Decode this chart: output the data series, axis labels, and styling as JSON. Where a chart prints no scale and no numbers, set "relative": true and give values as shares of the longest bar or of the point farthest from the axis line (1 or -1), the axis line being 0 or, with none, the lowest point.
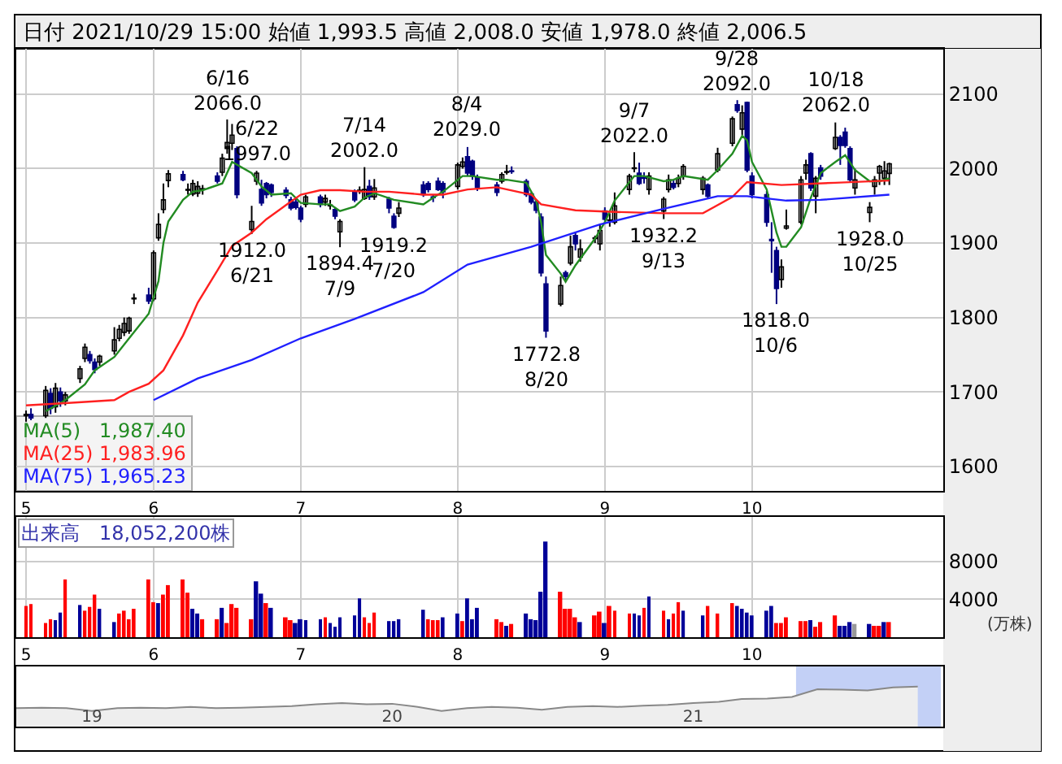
{
  "chart_data": [
    {
      "type": "candlestick",
      "title": "日付 2021/10/29 15:00 始値 1,993.5 高値 2,008.0 安値 1,978.0 終値 2,006.5",
      "x": [
        "2021-05-06",
        "2021-05-07",
        "2021-05-10",
        "2021-05-11",
        "2021-05-12",
        "2021-05-13",
        "2021-05-14",
        "2021-05-17",
        "2021-05-18",
        "2021-05-19",
        "2021-05-20",
        "2021-05-21",
        "2021-05-24",
        "2021-05-25",
        "2021-05-26",
        "2021-05-27",
        "2021-05-28",
        "2021-05-31",
        "2021-06-01",
        "2021-06-02",
        "2021-06-03",
        "2021-06-04",
        "2021-06-07",
        "2021-06-08",
        "2021-06-09",
        "2021-06-10",
        "2021-06-11",
        "2021-06-14",
        "2021-06-15",
        "2021-06-16",
        "2021-06-17",
        "2021-06-18",
        "2021-06-21",
        "2021-06-22",
        "2021-06-23",
        "2021-06-24",
        "2021-06-25",
        "2021-06-28",
        "2021-06-29",
        "2021-06-30",
        "2021-07-01",
        "2021-07-02",
        "2021-07-05",
        "2021-07-06",
        "2021-07-07",
        "2021-07-08",
        "2021-07-09",
        "2021-07-12",
        "2021-07-13",
        "2021-07-14",
        "2021-07-15",
        "2021-07-16",
        "2021-07-19",
        "2021-07-20",
        "2021-07-21",
        "2021-07-26",
        "2021-07-27",
        "2021-07-28",
        "2021-07-29",
        "2021-07-30",
        "2021-08-02",
        "2021-08-03",
        "2021-08-04",
        "2021-08-05",
        "2021-08-06",
        "2021-08-10",
        "2021-08-11",
        "2021-08-12",
        "2021-08-13",
        "2021-08-16",
        "2021-08-17",
        "2021-08-18",
        "2021-08-19",
        "2021-08-20",
        "2021-08-23",
        "2021-08-24",
        "2021-08-25",
        "2021-08-26",
        "2021-08-27",
        "2021-08-30",
        "2021-08-31",
        "2021-09-01",
        "2021-09-02",
        "2021-09-03",
        "2021-09-06",
        "2021-09-07",
        "2021-09-08",
        "2021-09-09",
        "2021-09-10",
        "2021-09-13",
        "2021-09-14",
        "2021-09-15",
        "2021-09-16",
        "2021-09-17",
        "2021-09-21",
        "2021-09-22",
        "2021-09-24",
        "2021-09-27",
        "2021-09-28",
        "2021-09-29",
        "2021-09-30",
        "2021-10-01",
        "2021-10-04",
        "2021-10-05",
        "2021-10-06",
        "2021-10-07",
        "2021-10-08",
        "2021-10-11",
        "2021-10-12",
        "2021-10-13",
        "2021-10-14",
        "2021-10-15",
        "2021-10-18",
        "2021-10-19",
        "2021-10-20",
        "2021-10-21",
        "2021-10-22",
        "2021-10-25",
        "2021-10-26",
        "2021-10-27",
        "2021-10-28",
        "2021-10-29"
      ],
      "ohlc": [
        [
          1668,
          1675,
          1660,
          1670
        ],
        [
          1670,
          1678,
          1662,
          1665
        ],
        [
          1668,
          1708,
          1665,
          1702
        ],
        [
          1698,
          1705,
          1670,
          1678
        ],
        [
          1680,
          1712,
          1672,
          1705
        ],
        [
          1700,
          1706,
          1680,
          1688
        ],
        [
          1688,
          1700,
          1682,
          1696
        ],
        [
          1718,
          1735,
          1712,
          1731
        ],
        [
          1745,
          1765,
          1740,
          1760
        ],
        [
          1750,
          1755,
          1738,
          1742
        ],
        [
          1740,
          1745,
          1725,
          1730
        ],
        [
          1740,
          1750,
          1735,
          1748
        ],
        [
          1755,
          1787,
          1750,
          1770
        ],
        [
          1772,
          1790,
          1768,
          1784
        ],
        [
          1780,
          1800,
          1775,
          1792
        ],
        [
          1782,
          1801,
          1778,
          1799
        ],
        [
          1825,
          1832,
          1818,
          1826
        ],
        [
          1830,
          1840,
          1818,
          1822
        ],
        [
          1825,
          1890,
          1822,
          1887
        ],
        [
          1907,
          1940,
          1903,
          1925
        ],
        [
          1945,
          1980,
          1940,
          1958
        ],
        [
          1984,
          1998,
          1975,
          1993
        ],
        [
          1992,
          1997,
          1983,
          1985
        ],
        [
          1971,
          1980,
          1965,
          1972
        ],
        [
          1966,
          1985,
          1963,
          1980
        ],
        [
          1967,
          1983,
          1962,
          1976
        ],
        [
          1972,
          1978,
          1965,
          1973
        ],
        [
          1990,
          1995,
          1980,
          1983
        ],
        [
          1995,
          2020,
          1990,
          2014
        ],
        [
          2027,
          2066,
          2020,
          2035
        ],
        [
          2034,
          2060,
          2025,
          2045
        ],
        [
          2027,
          2030,
          1960,
          1965
        ],
        [
          1918,
          1950,
          1912,
          1929
        ],
        [
          1983,
          1997,
          1978,
          1994
        ],
        [
          1972,
          1985,
          1950,
          1954
        ],
        [
          1980,
          1982,
          1960,
          1965
        ],
        [
          1978,
          1980,
          1962,
          1968
        ],
        [
          1971,
          1975,
          1960,
          1964
        ],
        [
          1958,
          1962,
          1944,
          1947
        ],
        [
          1955,
          1960,
          1945,
          1948
        ],
        [
          1947,
          1950,
          1928,
          1932
        ],
        [
          1952,
          1965,
          1948,
          1962
        ],
        [
          1962,
          1965,
          1948,
          1952
        ],
        [
          1955,
          1965,
          1950,
          1960
        ],
        [
          1950,
          1958,
          1945,
          1951
        ],
        [
          1945,
          1948,
          1932,
          1936
        ],
        [
          1915,
          1932,
          1894.4,
          1929
        ],
        [
          1970,
          1972,
          1955,
          1958
        ],
        [
          1970,
          1976,
          1966,
          1971
        ],
        [
          1960,
          2002,
          1958,
          1972
        ],
        [
          1976,
          1985,
          1958,
          1962
        ],
        [
          1962,
          1986,
          1958,
          1974
        ],
        [
          1959,
          1962,
          1940,
          1947
        ],
        [
          1936,
          1940,
          1919.2,
          1921
        ],
        [
          1940,
          1955,
          1935,
          1947
        ],
        [
          1978,
          1983,
          1962,
          1965
        ],
        [
          1980,
          1983,
          1968,
          1972
        ],
        [
          1962,
          1965,
          1955,
          1961
        ],
        [
          1983,
          1988,
          1970,
          1972
        ],
        [
          1980,
          1983,
          1960,
          1969
        ],
        [
          1976,
          2008,
          1972,
          2005
        ],
        [
          2003,
          2015,
          2000,
          2009
        ],
        [
          2016,
          2029,
          1990,
          1994
        ],
        [
          2010,
          2012,
          1985,
          1990
        ],
        [
          1988,
          1992,
          1970,
          1975
        ],
        [
          1978,
          1982,
          1963,
          1968
        ],
        [
          1983,
          1995,
          1980,
          1992
        ],
        [
          1995,
          2005,
          1992,
          1996
        ],
        [
          1997,
          2003,
          1993,
          1996
        ],
        [
          1983,
          1986,
          1962,
          1965
        ],
        [
          1966,
          1968,
          1952,
          1955
        ],
        [
          1955,
          1958,
          1940,
          1944
        ],
        [
          1935,
          1940,
          1855,
          1860
        ],
        [
          1845,
          1855,
          1772.8,
          1782
        ],
        [
          1818,
          1855,
          1815,
          1843
        ],
        [
          1860,
          1863,
          1850,
          1855
        ],
        [
          1873,
          1910,
          1870,
          1895
        ],
        [
          1910,
          1915,
          1890,
          1899
        ],
        [
          1881,
          1905,
          1875,
          1892
        ],
        [
          1906,
          1910,
          1900,
          1907
        ],
        [
          1899,
          1925,
          1890,
          1917
        ],
        [
          1943,
          1948,
          1930,
          1932
        ],
        [
          1930,
          1940,
          1922,
          1931
        ],
        [
          1928,
          1968,
          1925,
          1950
        ],
        [
          1972,
          1993,
          1965,
          1990
        ],
        [
          2000,
          2022,
          1995,
          2001
        ],
        [
          1994,
          2008,
          1978,
          1980
        ],
        [
          1988,
          1995,
          1980,
          1987
        ],
        [
          1972,
          1995,
          1965,
          1990
        ],
        [
          1943,
          1962,
          1932.2,
          1959
        ],
        [
          1972,
          1992,
          1968,
          1985
        ],
        [
          1980,
          1985,
          1972,
          1975
        ],
        [
          1980,
          1992,
          1975,
          1987
        ],
        [
          1990,
          2006,
          1985,
          2003
        ],
        [
          1972,
          1990,
          1965,
          1987
        ],
        [
          1978,
          1980,
          1960,
          1963
        ],
        [
          1998,
          2028,
          1995,
          2020
        ],
        [
          2034,
          2070,
          2030,
          2067
        ],
        [
          2086,
          2092,
          2075,
          2078
        ],
        [
          2053,
          2085,
          2045,
          2075
        ],
        [
          2089,
          2090,
          1995,
          1998
        ],
        [
          1990,
          1995,
          1960,
          1965
        ],
        [
          1965,
          1970,
          1922,
          1928
        ],
        [
          1905,
          1928,
          1860,
          1903
        ],
        [
          1890,
          1895,
          1818,
          1839
        ],
        [
          1851,
          1878,
          1840,
          1868
        ],
        [
          1920,
          1945,
          1918,
          1923
        ],
        [
          1928,
          1990,
          1925,
          1985
        ],
        [
          1994,
          2012,
          1985,
          2005
        ],
        [
          2020,
          2022,
          1970,
          1974
        ],
        [
          1963,
          1990,
          1940,
          1987
        ],
        [
          2001,
          2005,
          1985,
          1990
        ],
        [
          2027,
          2062,
          2025,
          2042
        ],
        [
          2042,
          2045,
          2005,
          2031
        ],
        [
          2049,
          2055,
          2028,
          2031
        ],
        [
          2027,
          2030,
          1982,
          1985
        ],
        [
          1974,
          2000,
          1965,
          1985
        ],
        [
          1941,
          1955,
          1928,
          1948
        ],
        [
          1976,
          1990,
          1965,
          1985
        ],
        [
          1994,
          2005,
          1978,
          2003
        ],
        [
          1987,
          2010,
          1978,
          1997
        ],
        [
          1993.5,
          2008,
          1978,
          2006.5
        ]
      ],
      "series": [
        {
          "type": "line",
          "name": "MA(5)",
          "color": "#228b22",
          "x": [
            "2021-05-10",
            "2021-05-14",
            "2021-05-18",
            "2021-05-20",
            "2021-05-24",
            "2021-05-27",
            "2021-05-31",
            "2021-06-02",
            "2021-06-03",
            "2021-06-04",
            "2021-06-07",
            "2021-06-09",
            "2021-06-11",
            "2021-06-15",
            "2021-06-17",
            "2021-06-21",
            "2021-06-23",
            "2021-06-25",
            "2021-06-29",
            "2021-07-01",
            "2021-07-05",
            "2021-07-07",
            "2021-07-09",
            "2021-07-12",
            "2021-07-14",
            "2021-07-16",
            "2021-07-20",
            "2021-07-26",
            "2021-07-28",
            "2021-07-30",
            "2021-08-03",
            "2021-08-05",
            "2021-08-10",
            "2021-08-12",
            "2021-08-16",
            "2021-08-18",
            "2021-08-19",
            "2021-08-20",
            "2021-08-23",
            "2021-08-24",
            "2021-08-26",
            "2021-08-30",
            "2021-09-01",
            "2021-09-03",
            "2021-09-07",
            "2021-09-09",
            "2021-09-13",
            "2021-09-15",
            "2021-09-17",
            "2021-09-22",
            "2021-09-24",
            "2021-09-27",
            "2021-09-29",
            "2021-09-30",
            "2021-10-01",
            "2021-10-04",
            "2021-10-06",
            "2021-10-07",
            "2021-10-08",
            "2021-10-11",
            "2021-10-13",
            "2021-10-15",
            "2021-10-18",
            "2021-10-20",
            "2021-10-22",
            "2021-10-25",
            "2021-10-27",
            "2021-10-29"
          ],
          "values": [
            1674,
            1689,
            1710,
            1729,
            1747,
            1772,
            1805,
            1849,
            1900,
            1929,
            1958,
            1969,
            1971,
            1980,
            2009,
            1994,
            1976,
            1965,
            1967,
            1954,
            1952,
            1952,
            1943,
            1949,
            1961,
            1967,
            1958,
            1952,
            1961,
            1969,
            1990,
            1990,
            1985,
            1985,
            1981,
            1957,
            1928,
            1884,
            1859,
            1848,
            1870,
            1906,
            1928,
            1957,
            1990,
            1990,
            1983,
            1985,
            1990,
            1985,
            1998,
            2020,
            2044,
            2038,
            2009,
            1972,
            1914,
            1895,
            1895,
            1921,
            1961,
            1994,
            2009,
            2018,
            1998,
            1983,
            1983,
            1987
          ]
        },
        {
          "type": "line",
          "name": "MA(25)",
          "color": "#ff2020",
          "x": [
            "2021-05-06",
            "2021-05-14",
            "2021-05-24",
            "2021-05-27",
            "2021-05-31",
            "2021-06-03",
            "2021-06-07",
            "2021-06-10",
            "2021-06-14",
            "2021-06-17",
            "2021-06-21",
            "2021-06-24",
            "2021-06-28",
            "2021-07-01",
            "2021-07-05",
            "2021-07-09",
            "2021-07-14",
            "2021-07-19",
            "2021-07-26",
            "2021-07-30",
            "2021-08-04",
            "2021-08-10",
            "2021-08-17",
            "2021-08-19",
            "2021-08-26",
            "2021-09-02",
            "2021-09-13",
            "2021-09-21",
            "2021-09-27",
            "2021-09-30",
            "2021-10-07",
            "2021-10-18",
            "2021-10-29"
          ],
          "values": [
            1682,
            1685,
            1689,
            1700,
            1711,
            1729,
            1776,
            1820,
            1863,
            1896,
            1914,
            1932,
            1951,
            1965,
            1971,
            1971,
            1969,
            1969,
            1965,
            1965,
            1972,
            1975,
            1965,
            1952,
            1944,
            1942,
            1940,
            1940,
            1962,
            1982,
            1978,
            1981,
            1984
          ]
        },
        {
          "type": "line",
          "name": "MA(75)",
          "color": "#2020ff",
          "x": [
            "2021-06-01",
            "2021-06-10",
            "2021-06-21",
            "2021-07-01",
            "2021-07-12",
            "2021-07-26",
            "2021-08-04",
            "2021-08-17",
            "2021-08-31",
            "2021-09-13",
            "2021-09-24",
            "2021-09-30",
            "2021-10-08",
            "2021-10-15",
            "2021-10-29"
          ],
          "values": [
            1689,
            1718,
            1743,
            1772,
            1798,
            1834,
            1871,
            1895,
            1925,
            1946,
            1963,
            1963,
            1957,
            1958,
            1965
          ]
        }
      ],
      "annotations": [
        "1,987.40",
        "1,983.96",
        "1,965.23",
        {
          "text": "6/16\n2066.0",
          "x": "2021-06-16",
          "y": 2066
        },
        {
          "text": "1912.0\n6/21",
          "x": "2021-06-21",
          "y": 1912
        },
        {
          "text": "6/22\n1997.0",
          "x": "2021-06-22",
          "y": 1997
        },
        {
          "text": "1894.4\n7/9",
          "x": "2021-07-09",
          "y": 1894.4
        },
        {
          "text": "7/14\n2002.0",
          "x": "2021-07-14",
          "y": 2002
        },
        {
          "text": "1919.2\n7/20",
          "x": "2021-07-20",
          "y": 1919.2
        },
        {
          "text": "8/4\n2029.0",
          "x": "2021-08-04",
          "y": 2029
        },
        {
          "text": "1772.8\n8/20",
          "x": "2021-08-20",
          "y": 1772.8
        },
        {
          "text": "9/7\n2022.0",
          "x": "2021-09-07",
          "y": 2022
        },
        {
          "text": "1932.2\n9/13",
          "x": "2021-09-13",
          "y": 1932.2
        },
        {
          "text": "9/28\n2092.0",
          "x": "2021-09-28",
          "y": 2092
        },
        {
          "text": "1818.0\n10/6",
          "x": "2021-10-06",
          "y": 1818
        },
        {
          "text": "10/18\n2062.0",
          "x": "2021-10-18",
          "y": 2062
        },
        {
          "text": "1928.0\n10/25",
          "x": "2021-10-25",
          "y": 1928
        }
      ],
      "xlim": [
        "2021-05-04",
        "2021-11-09"
      ],
      "xticks": [
        {
          "value": "2021-05-06",
          "label": "5"
        },
        {
          "value": "2021-06-01",
          "label": "6"
        },
        {
          "value": "2021-07-01",
          "label": "7"
        },
        {
          "value": "2021-08-02",
          "label": "8"
        },
        {
          "value": "2021-09-01",
          "label": "9"
        },
        {
          "value": "2021-10-01",
          "label": "10"
        }
      ],
      "ylim": [
        1567,
        2161
      ],
      "yticks": [
        1600,
        1700,
        1800,
        1900,
        2000,
        2100
      ],
      "grid": true,
      "legend": "bottom left"
    },
    {
      "type": "bar",
      "title": "出来高　18,052,200株",
      "ylabel": "(万株)",
      "x": [
        "2021-05-06",
        "2021-05-07",
        "2021-05-10",
        "2021-05-11",
        "2021-05-12",
        "2021-05-13",
        "2021-05-14",
        "2021-05-17",
        "2021-05-18",
        "2021-05-19",
        "2021-05-20",
        "2021-05-21",
        "2021-05-24",
        "2021-05-25",
        "2021-05-26",
        "2021-05-27",
        "2021-05-28",
        "2021-05-31",
        "2021-06-01",
        "2021-06-02",
        "2021-06-03",
        "2021-06-04",
        "2021-06-07",
        "2021-06-08",
        "2021-06-09",
        "2021-06-10",
        "2021-06-11",
        "2021-06-14",
        "2021-06-15",
        "2021-06-16",
        "2021-06-17",
        "2021-06-18",
        "2021-06-21",
        "2021-06-22",
        "2021-06-23",
        "2021-06-24",
        "2021-06-25",
        "2021-06-28",
        "2021-06-29",
        "2021-06-30",
        "2021-07-01",
        "2021-07-02",
        "2021-07-05",
        "2021-07-06",
        "2021-07-07",
        "2021-07-08",
        "2021-07-09",
        "2021-07-12",
        "2021-07-13",
        "2021-07-14",
        "2021-07-15",
        "2021-07-16",
        "2021-07-19",
        "2021-07-20",
        "2021-07-21",
        "2021-07-26",
        "2021-07-27",
        "2021-07-28",
        "2021-07-29",
        "2021-07-30",
        "2021-08-02",
        "2021-08-03",
        "2021-08-04",
        "2021-08-05",
        "2021-08-06",
        "2021-08-10",
        "2021-08-11",
        "2021-08-12",
        "2021-08-13",
        "2021-08-16",
        "2021-08-17",
        "2021-08-18",
        "2021-08-19",
        "2021-08-20",
        "2021-08-23",
        "2021-08-24",
        "2021-08-25",
        "2021-08-26",
        "2021-08-27",
        "2021-08-30",
        "2021-08-31",
        "2021-09-01",
        "2021-09-02",
        "2021-09-03",
        "2021-09-06",
        "2021-09-07",
        "2021-09-08",
        "2021-09-09",
        "2021-09-10",
        "2021-09-13",
        "2021-09-14",
        "2021-09-15",
        "2021-09-16",
        "2021-09-17",
        "2021-09-21",
        "2021-09-22",
        "2021-09-24",
        "2021-09-27",
        "2021-09-28",
        "2021-09-29",
        "2021-09-30",
        "2021-10-01",
        "2021-10-04",
        "2021-10-05",
        "2021-10-06",
        "2021-10-07",
        "2021-10-08",
        "2021-10-11",
        "2021-10-12",
        "2021-10-13",
        "2021-10-14",
        "2021-10-15",
        "2021-10-18",
        "2021-10-19",
        "2021-10-20",
        "2021-10-21",
        "2021-10-22",
        "2021-10-25",
        "2021-10-26",
        "2021-10-27",
        "2021-10-28",
        "2021-10-29"
      ],
      "values": [
        3300,
        3500,
        1500,
        1900,
        1800,
        2600,
        6100,
        3400,
        2800,
        3200,
        4500,
        3000,
        1600,
        2500,
        2800,
        1900,
        3000,
        6100,
        3700,
        3600,
        4500,
        5500,
        6100,
        4700,
        3000,
        2500,
        1900,
        1900,
        3100,
        1500,
        3500,
        3100,
        1900,
        5900,
        4600,
        3600,
        3100,
        2100,
        1800,
        1500,
        1900,
        1800,
        1900,
        2100,
        1500,
        1100,
        2100,
        2300,
        4100,
        2100,
        1500,
        2600,
        1700,
        1700,
        1900,
        2900,
        1900,
        1800,
        1800,
        2100,
        2500,
        1700,
        4100,
        1900,
        3100,
        1900,
        1600,
        1200,
        1400,
        2500,
        1900,
        1800,
        4800,
        10100,
        4800,
        3000,
        3000,
        2100,
        1600,
        2300,
        2700,
        1500,
        3300,
        2800,
        2500,
        2500,
        2300,
        3100,
        4300,
        2800,
        1900,
        2500,
        3700,
        2800,
        2300,
        3300,
        2500,
        3600,
        3300,
        3000,
        2600,
        2300,
        2800,
        3300,
        1500,
        1500,
        2100,
        1700,
        1700,
        1800,
        1100,
        1600,
        2300,
        1200,
        1200,
        1600,
        1400,
        1400,
        1200,
        1200,
        1600,
        1600
      ],
      "colors": [
        "#ff0000",
        "#ff0000",
        "#ff0000",
        "#ff0000",
        "#000099",
        "#000099",
        "#ff0000",
        "#000099",
        "#ff0000",
        "#ff0000",
        "#ff0000",
        "#000099",
        "#000099",
        "#ff0000",
        "#ff0000",
        "#ff0000",
        "#ff0000",
        "#ff0000",
        "#ff0000",
        "#000099",
        "#ff0000",
        "#ff0000",
        "#ff0000",
        "#ff0000",
        "#000099",
        "#000099",
        "#ff0000",
        "#ff0000",
        "#000099",
        "#ff0000",
        "#ff0000",
        "#ff0000",
        "#ff0000",
        "#000099",
        "#000099",
        "#ff0000",
        "#000099",
        "#ff0000",
        "#ff0000",
        "#000099",
        "#000099",
        "#000099",
        "#000099",
        "#ff0000",
        "#000099",
        "#000099",
        "#000099",
        "#000099",
        "#000099",
        "#ff0000",
        "#ff0000",
        "#ff0000",
        "#000099",
        "#000099",
        "#000099",
        "#000099",
        "#ff0000",
        "#ff0000",
        "#ff0000",
        "#000099",
        "#000099",
        "#ff0000",
        "#000099",
        "#000099",
        "#000099",
        "#ff0000",
        "#ff0000",
        "#000099",
        "#ff0000",
        "#000099",
        "#000099",
        "#000099",
        "#000099",
        "#000099",
        "#ff0000",
        "#ff0000",
        "#ff0000",
        "#ff0000",
        "#000099",
        "#ff0000",
        "#ff0000",
        "#000099",
        "#ff0000",
        "#ff0000",
        "#ff0000",
        "#000099",
        "#000099",
        "#ff0000",
        "#000099",
        "#ff0000",
        "#000099",
        "#ff0000",
        "#ff0000",
        "#000099",
        "#000099",
        "#ff0000",
        "#ff0000",
        "#ff0000",
        "#000099",
        "#000099",
        "#000099",
        "#000099",
        "#000099",
        "#000099",
        "#ff0000",
        "#ff0000",
        "#ff0000",
        "#ff0000",
        "#ff0000",
        "#000099",
        "#ff0000",
        "#ff0000",
        "#ff0000",
        "#000099",
        "#000099",
        "#000099",
        "#999999",
        "#000099",
        "#ff0000",
        "#ff0000",
        "#000099",
        "#ff0000"
      ],
      "xlim": [
        "2021-05-04",
        "2021-11-09"
      ],
      "xticks": [
        {
          "value": "2021-05-06",
          "label": "5"
        },
        {
          "value": "2021-06-01",
          "label": "6"
        },
        {
          "value": "2021-07-01",
          "label": "7"
        },
        {
          "value": "2021-08-02",
          "label": "8"
        },
        {
          "value": "2021-09-01",
          "label": "9"
        },
        {
          "value": "2021-10-01",
          "label": "10"
        }
      ],
      "ylim": [
        0,
        12700
      ],
      "yticks": [
        4000,
        8000
      ],
      "grid": true
    },
    {
      "type": "area",
      "relative": true,
      "x": [
        "2018-10",
        "2018-11",
        "2018-12",
        "2019-01",
        "2019-02",
        "2019-03",
        "2019-04",
        "2019-05",
        "2019-06",
        "2019-07",
        "2019-08",
        "2019-09",
        "2019-10",
        "2019-11",
        "2019-12",
        "2020-01",
        "2020-02",
        "2020-03",
        "2020-04",
        "2020-05",
        "2020-06",
        "2020-07",
        "2020-08",
        "2020-09",
        "2020-10",
        "2020-11",
        "2020-12",
        "2021-01",
        "2021-02",
        "2021-03",
        "2021-04",
        "2021-05",
        "2021-06",
        "2021-07",
        "2021-08",
        "2021-09",
        "2021-10"
      ],
      "values": [
        0.46,
        0.47,
        0.46,
        0.39,
        0.46,
        0.47,
        0.46,
        0.49,
        0.46,
        0.47,
        0.49,
        0.51,
        0.56,
        0.59,
        0.56,
        0.57,
        0.49,
        0.39,
        0.46,
        0.49,
        0.47,
        0.42,
        0.49,
        0.51,
        0.49,
        0.52,
        0.54,
        0.59,
        0.62,
        0.69,
        0.7,
        0.74,
        0.93,
        0.92,
        0.9,
        0.98,
        1.0
      ],
      "color": "#888888",
      "xlim": [
        "2018-10-01",
        "2021-11-01"
      ],
      "xticks": [
        {
          "value": "2019-01",
          "label": "19"
        },
        {
          "value": "2020-01",
          "label": "20"
        },
        {
          "value": "2021-01",
          "label": "21"
        }
      ],
      "bands": [
        {
          "axis": "x",
          "from": "2021-05-06",
          "to": "2021-10-29",
          "color": "#b4c4f4"
        }
      ]
    }
  ]
}
